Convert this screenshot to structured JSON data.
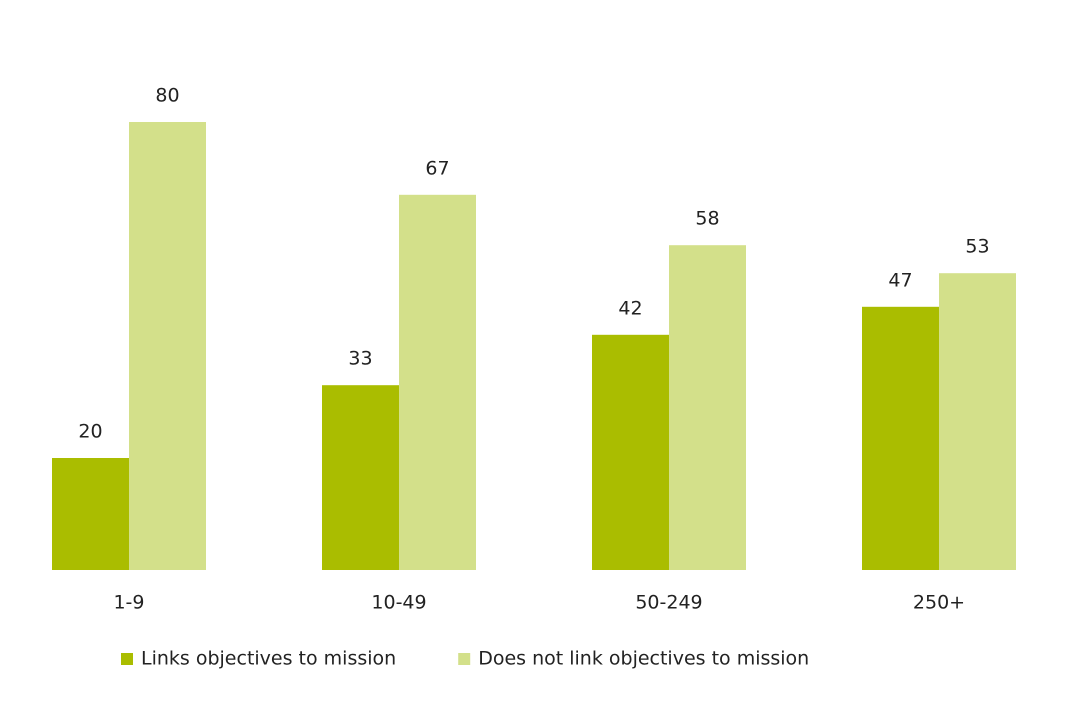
{
  "chart_data": {
    "type": "bar",
    "categories": [
      "1-9",
      "10-49",
      "50-249",
      "250+"
    ],
    "series": [
      {
        "name": "Links objectives to mission",
        "color": "#aabd00",
        "values": [
          20,
          33,
          42,
          47
        ]
      },
      {
        "name": "Does not link objectives to mission",
        "color": "#d3e08a",
        "values": [
          80,
          67,
          58,
          53
        ]
      }
    ]
  }
}
